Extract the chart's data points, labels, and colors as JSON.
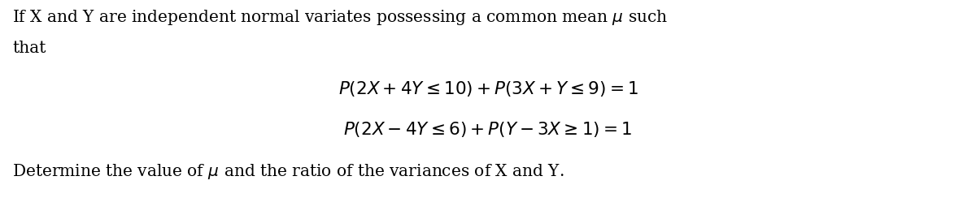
{
  "background_color": "#ffffff",
  "figsize": [
    12.0,
    2.49
  ],
  "dpi": 100,
  "text_color": "#000000",
  "body_text_line1": "If X and Y are independent normal variates possessing a common mean $\\mu$ such",
  "body_text_line2": "that",
  "eq1": "$P(2X + 4Y \\leq 10) + P(3X + Y \\leq 9) = 1$",
  "eq2": "$P(2X - 4Y \\leq 6) + P(Y - 3X \\geq 1) = 1$",
  "footer_text": "Determine the value of $\\mu$ and the ratio of the variances of X and Y.",
  "font_size_body": 14.5,
  "font_size_eq": 15.5,
  "font_family": "DejaVu Serif"
}
